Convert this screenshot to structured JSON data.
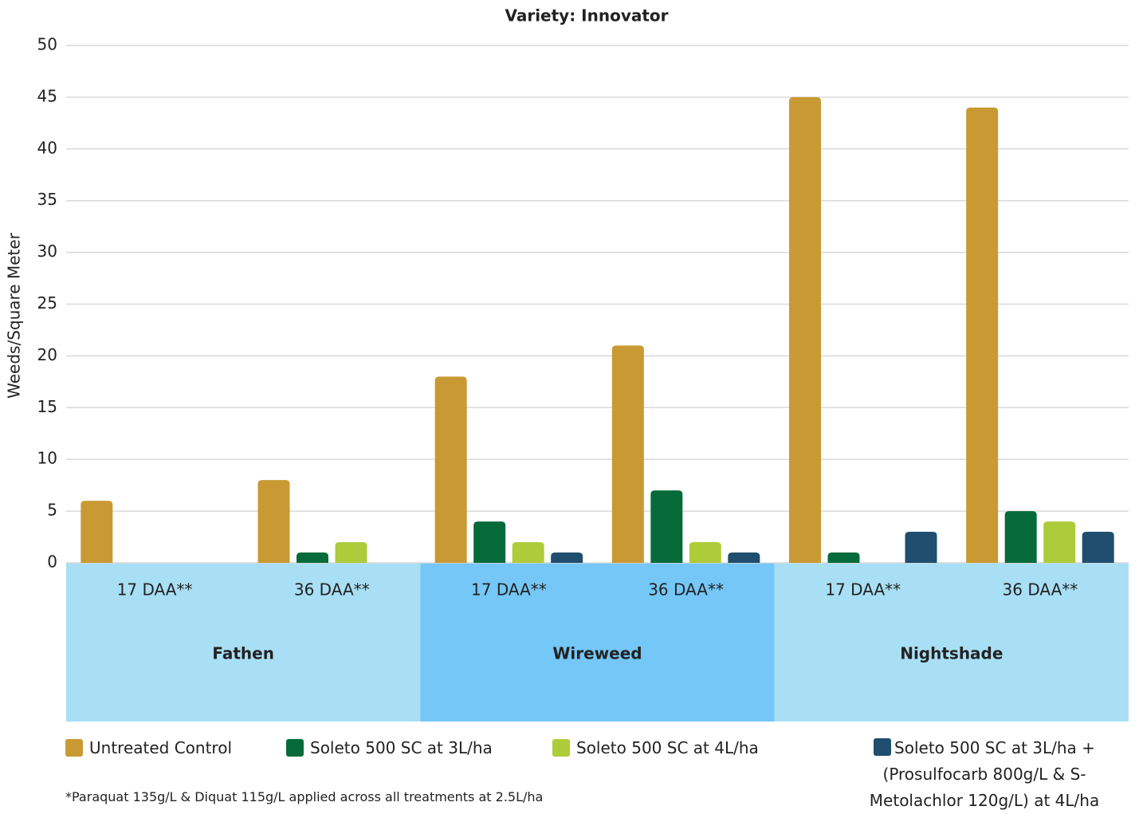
{
  "chart_data": {
    "type": "bar",
    "title": "Variety: Innovator",
    "y_label": "Weeds/Square Meter",
    "categories": [
      "17 DAA**",
      "36 DAA**",
      "17 DAA**",
      "36 DAA**",
      "17 DAA**",
      "36 DAA**"
    ],
    "groups": [
      {
        "name": "Fathen",
        "color": "#a8dff5"
      },
      {
        "name": "Wireweed",
        "color": "#74c7f7"
      },
      {
        "name": "Nightshade",
        "color": "#a8dff5"
      }
    ],
    "series": [
      {
        "name": "Untreated Control",
        "color": "#c99a33",
        "values": [
          6,
          8,
          18,
          21,
          45,
          44
        ]
      },
      {
        "name": "Soleto 500 SC at 3L/ha",
        "color": "#066b3a",
        "values": [
          0,
          1,
          4,
          7,
          1,
          5
        ]
      },
      {
        "name": "Soleto 500 SC at 4L/ha",
        "color": "#aecb3a",
        "values": [
          0,
          2,
          2,
          2,
          0,
          4
        ]
      },
      {
        "name": "Soleto 500 SC at 3L/ha + (Prosulfocarb 800g/L & S-Metolachlor 120g/L) at 4L/ha",
        "color": "#1f4e6e",
        "values": [
          0,
          0,
          1,
          1,
          3,
          3
        ]
      }
    ],
    "ylim": [
      0,
      50
    ],
    "yticks": [
      0,
      5,
      10,
      15,
      20,
      25,
      30,
      35,
      40,
      45,
      50
    ],
    "grid": true,
    "footnote": "*Paraquat 135g/L & Diquat 115g/L applied across all treatments at 2.5L/ha"
  }
}
